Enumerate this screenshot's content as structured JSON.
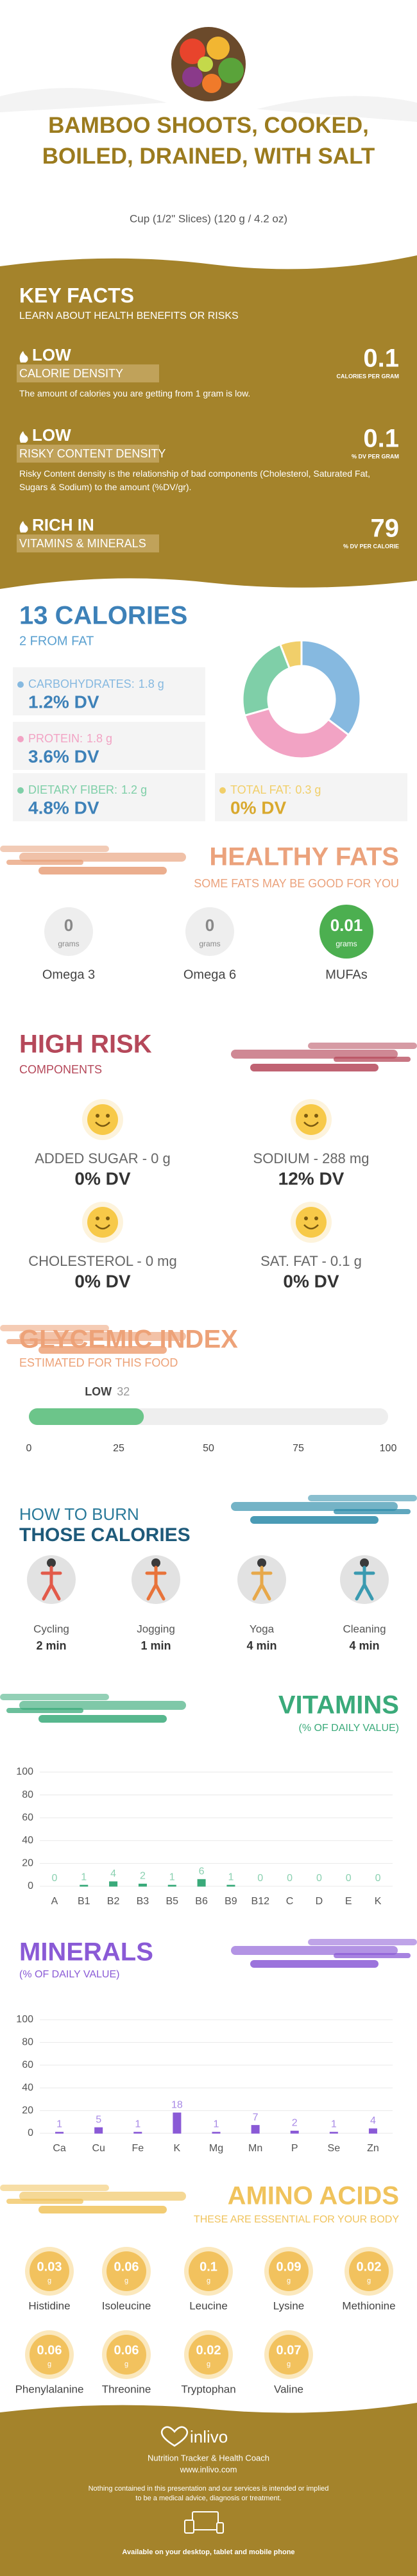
{
  "header": {
    "title": "BAMBOO SHOOTS, COOKED, BOILED, DRAINED, WITH SALT",
    "serving": "Cup (1/2\" Slices) (120 g / 4.2 oz)"
  },
  "key_facts": {
    "title": "KEY FACTS",
    "subtitle": "LEARN ABOUT HEALTH BENEFITS OR RISKS",
    "facts": [
      {
        "level": "LOW",
        "label": "CALORIE DENSITY",
        "value": 0.1,
        "unit": "CALORIES PER GRAM",
        "description": "The amount of calories you are getting from 1 gram is low."
      },
      {
        "level": "LOW",
        "label": "RISKY CONTENT DENSITY",
        "value": 0.1,
        "unit": "% DV PER GRAM",
        "description": "Risky Content density is the relationship of bad components (Cholesterol, Saturated Fat, Sugars & Sodium) to the amount (%DV/gr)."
      },
      {
        "level": "RICH IN",
        "label": "VITAMINS & MINERALS",
        "value": 79,
        "unit": "% DV PER CALORIE"
      }
    ]
  },
  "calories": {
    "title": "13 CALORIES",
    "subtitle": "2 FROM FAT",
    "nutrients": [
      {
        "name": "CARBOHYDRATES:",
        "grams": 1.8,
        "unit": "g",
        "dv": "1.2% DV",
        "color": "#86b9e0"
      },
      {
        "name": "PROTEIN:",
        "grams": 1.8,
        "unit": "g",
        "dv": "3.6% DV",
        "color": "#f2a3c4"
      },
      {
        "name": "DIETARY FIBER:",
        "grams": 1.2,
        "unit": "g",
        "dv": "4.8% DV",
        "color": "#7fcfa8"
      },
      {
        "name": "TOTAL FAT:",
        "grams": 0.3,
        "unit": "g",
        "dv": "0% DV",
        "color": "#f1cf6a"
      }
    ]
  },
  "healthy_fats": {
    "title": "HEALTHY FATS",
    "subtitle": "SOME FATS MAY BE GOOD FOR YOU",
    "items": [
      {
        "name": "Omega 3",
        "value": 0,
        "unit": "grams"
      },
      {
        "name": "Omega 6",
        "value": 0,
        "unit": "grams"
      },
      {
        "name": "MUFAs",
        "value": 0.01,
        "unit": "grams"
      }
    ]
  },
  "high_risk": {
    "title": "HIGH RISK",
    "subtitle": "COMPONENTS",
    "items": [
      {
        "label": "ADDED SUGAR - 0 g",
        "dv": "0% DV"
      },
      {
        "label": "SODIUM - 288 mg",
        "dv": "12% DV"
      },
      {
        "label": "CHOLESTEROL - 0 mg",
        "dv": "0% DV"
      },
      {
        "label": "SAT. FAT - 0.1 g",
        "dv": "0% DV"
      }
    ]
  },
  "glycemic": {
    "title": "GLYCEMIC INDEX",
    "subtitle": "ESTIMATED FOR THIS FOOD",
    "level": "LOW",
    "value": 32,
    "xlim": [
      0,
      100
    ],
    "xticks": [
      0,
      25,
      50,
      75,
      100
    ]
  },
  "burn": {
    "title": "HOW TO BURN",
    "title2": "THOSE CALORIES",
    "activities": [
      {
        "name": "Cycling",
        "time": "2 min"
      },
      {
        "name": "Jogging",
        "time": "1 min"
      },
      {
        "name": "Yoga",
        "time": "4 min"
      },
      {
        "name": "Cleaning",
        "time": "4 min"
      }
    ]
  },
  "chart_data": [
    {
      "type": "bar",
      "title": "VITAMINS",
      "subtitle": "(% OF DAILY VALUE)",
      "categories": [
        "A",
        "B1",
        "B2",
        "B3",
        "B5",
        "B6",
        "B9",
        "B12",
        "C",
        "D",
        "E",
        "K"
      ],
      "values": [
        0,
        1,
        4,
        2,
        1,
        6,
        1,
        0,
        0,
        0,
        0,
        0
      ],
      "color": "#3aaa7a",
      "ylim": [
        0,
        100
      ],
      "yticks": [
        0,
        20,
        40,
        60,
        80,
        100
      ],
      "grid": true
    },
    {
      "type": "bar",
      "title": "MINERALS",
      "subtitle": "(% OF DAILY VALUE)",
      "categories": [
        "Ca",
        "Cu",
        "Fe",
        "K",
        "Mg",
        "Mn",
        "P",
        "Se",
        "Zn"
      ],
      "values": [
        1,
        5,
        1,
        18,
        1,
        7,
        2,
        1,
        4
      ],
      "color": "#8a5ad6",
      "ylim": [
        0,
        100
      ],
      "yticks": [
        0,
        20,
        40,
        60,
        80,
        100
      ],
      "grid": true
    }
  ],
  "amino_acids": {
    "title": "AMINO ACIDS",
    "subtitle": "THESE ARE ESSENTIAL FOR YOUR BODY",
    "unit": "g",
    "items": [
      {
        "name": "Histidine",
        "value": 0.03
      },
      {
        "name": "Isoleucine",
        "value": 0.06
      },
      {
        "name": "Leucine",
        "value": 0.1
      },
      {
        "name": "Lysine",
        "value": 0.09
      },
      {
        "name": "Methionine",
        "value": 0.02
      },
      {
        "name": "Phenylalanine",
        "value": 0.06
      },
      {
        "name": "Threonine",
        "value": 0.06
      },
      {
        "name": "Tryptophan",
        "value": 0.02
      },
      {
        "name": "Valine",
        "value": 0.07
      }
    ]
  },
  "footer": {
    "brand": "inlivo",
    "tagline": "Nutrition Tracker & Health Coach",
    "url": "www.inlivo.com",
    "disclaimer": "Nothing contained in this presentation and our services is intended or implied to be a medical advice, diagnosis or treatment.",
    "availability": "Available on your desktop, tablet and mobile phone"
  }
}
